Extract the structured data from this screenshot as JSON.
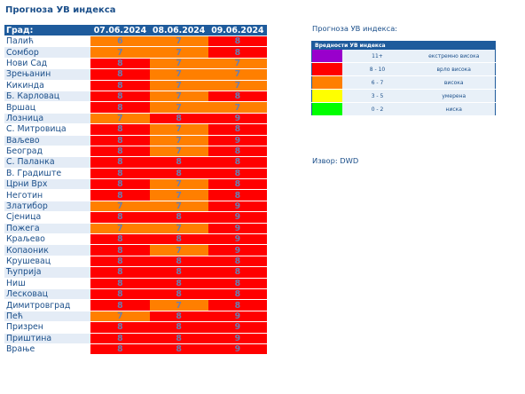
{
  "title": "Прогноза УВ индекса",
  "table": {
    "headers": [
      "Град:",
      "07.06.2024",
      "08.06.2024",
      "09.06.2024"
    ],
    "rows": [
      {
        "city": "Палић",
        "values": [
          "6",
          "7",
          "8"
        ]
      },
      {
        "city": "Сомбор",
        "values": [
          "7",
          "7",
          "8"
        ]
      },
      {
        "city": "Нови Сад",
        "values": [
          "8",
          "7",
          "7"
        ]
      },
      {
        "city": "Зрењанин",
        "values": [
          "8",
          "7",
          "7"
        ]
      },
      {
        "city": "Кикинда",
        "values": [
          "8",
          "7",
          "7"
        ]
      },
      {
        "city": "Б. Карловац",
        "values": [
          "8",
          "7",
          "8"
        ]
      },
      {
        "city": "Вршац",
        "values": [
          "8",
          "7",
          "7"
        ]
      },
      {
        "city": "Лозница",
        "values": [
          "7",
          "8",
          "9"
        ]
      },
      {
        "city": "С. Митровица",
        "values": [
          "8",
          "7",
          "8"
        ]
      },
      {
        "city": "Ваљево",
        "values": [
          "8",
          "7",
          "9"
        ]
      },
      {
        "city": "Београд",
        "values": [
          "8",
          "7",
          "8"
        ]
      },
      {
        "city": "С. Паланка",
        "values": [
          "8",
          "8",
          "8"
        ]
      },
      {
        "city": "В. Градиште",
        "values": [
          "8",
          "8",
          "8"
        ]
      },
      {
        "city": "Црни Врх",
        "values": [
          "8",
          "7",
          "8"
        ]
      },
      {
        "city": "Неготин",
        "values": [
          "8",
          "7",
          "8"
        ]
      },
      {
        "city": "Златибор",
        "values": [
          "7",
          "7",
          "9"
        ]
      },
      {
        "city": "Сјеница",
        "values": [
          "8",
          "8",
          "9"
        ]
      },
      {
        "city": "Пожега",
        "values": [
          "7",
          "7",
          "9"
        ]
      },
      {
        "city": "Краљево",
        "values": [
          "8",
          "8",
          "9"
        ]
      },
      {
        "city": "Копаоник",
        "values": [
          "8",
          "7",
          "9"
        ]
      },
      {
        "city": "Крушевац",
        "values": [
          "8",
          "8",
          "8"
        ]
      },
      {
        "city": "Ћуприја",
        "values": [
          "8",
          "8",
          "8"
        ]
      },
      {
        "city": "Ниш",
        "values": [
          "8",
          "8",
          "8"
        ]
      },
      {
        "city": "Лесковац",
        "values": [
          "8",
          "8",
          "8"
        ]
      },
      {
        "city": "Димитровград",
        "values": [
          "8",
          "7",
          "8"
        ]
      },
      {
        "city": "Пећ",
        "values": [
          "7",
          "8",
          "9"
        ]
      },
      {
        "city": "Призрен",
        "values": [
          "8",
          "8",
          "9"
        ]
      },
      {
        "city": "Приштина",
        "values": [
          "8",
          "8",
          "9"
        ]
      },
      {
        "city": "Врање",
        "values": [
          "8",
          "8",
          "9"
        ]
      }
    ]
  },
  "legend": {
    "title": "Прогноза УВ индекса:",
    "header": "Вредности УВ индекса",
    "rows": [
      {
        "color": "#9900cc",
        "range": "11+",
        "label": "екстремно висока"
      },
      {
        "color": "#ff0000",
        "range": "8 - 10",
        "label": "врло висока"
      },
      {
        "color": "#ff7f00",
        "range": "6 - 7",
        "label": "висока"
      },
      {
        "color": "#ffff00",
        "range": "3 - 5",
        "label": "умерена"
      },
      {
        "color": "#00ff00",
        "range": "0 - 2",
        "label": "ниска"
      }
    ]
  },
  "source": "Извор: DWD",
  "colors": {
    "orange": "#ff7f00",
    "red": "#ff0000",
    "header_blue": "#1e5b9c",
    "text_blue": "#1b4f8a"
  }
}
